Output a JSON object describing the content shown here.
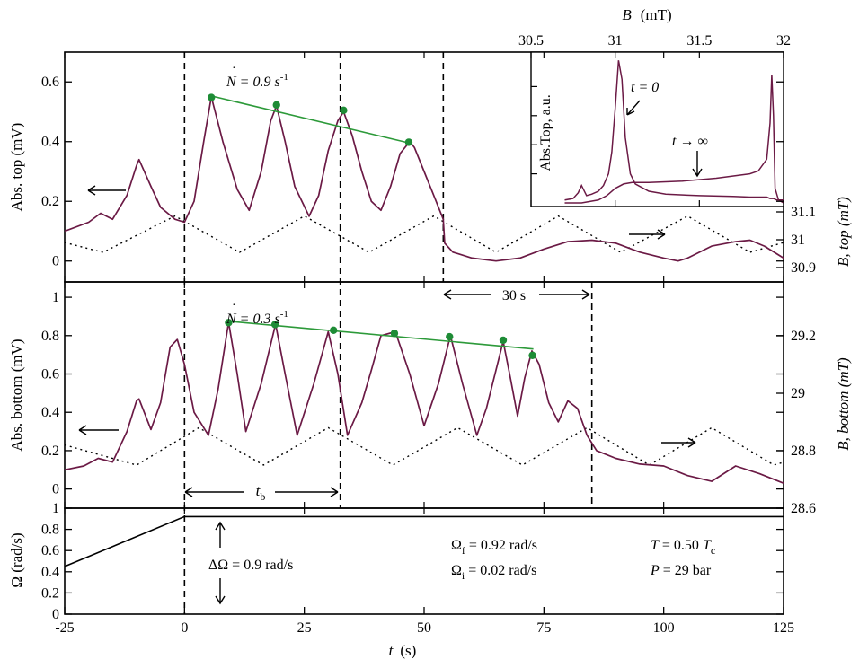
{
  "chart_data": {
    "type": "line",
    "x_axis": {
      "label_var": "t",
      "label_unit": "(s)",
      "range": [
        -25,
        125
      ],
      "ticks": [
        "-25",
        "0",
        "25",
        "50",
        "75",
        "100",
        "125"
      ]
    },
    "top_panel": {
      "ylabel": "Abs. top  (mV)",
      "ylim": [
        -0.07,
        0.7
      ],
      "yticks": [
        "0",
        "0.2",
        "0.4",
        "0.6"
      ],
      "right_label": "B, top  (mT)",
      "right_ticks": [
        "30.9",
        "31",
        "31.1"
      ],
      "rate_label": "N = 0.9 s",
      "rate_exp": "-1",
      "signal_x": [
        -25,
        -20,
        -17.5,
        -15,
        -12,
        -10,
        -9.5,
        -7,
        -5,
        -2,
        0,
        2,
        4,
        5.6,
        8,
        11,
        13.5,
        16,
        18,
        19.2,
        21,
        23,
        26,
        28,
        30,
        32,
        33.2,
        35,
        37,
        39,
        41,
        43,
        45,
        47,
        48,
        50,
        52,
        54,
        54.3,
        56,
        60,
        65,
        70,
        75,
        80,
        85,
        90,
        95,
        100,
        103,
        105,
        110,
        115,
        118,
        121,
        125
      ],
      "signal_y": [
        0.1,
        0.13,
        0.16,
        0.14,
        0.22,
        0.32,
        0.34,
        0.25,
        0.18,
        0.14,
        0.13,
        0.2,
        0.4,
        0.55,
        0.4,
        0.24,
        0.17,
        0.3,
        0.47,
        0.52,
        0.4,
        0.25,
        0.15,
        0.22,
        0.37,
        0.47,
        0.5,
        0.42,
        0.3,
        0.2,
        0.17,
        0.25,
        0.36,
        0.4,
        0.38,
        0.3,
        0.22,
        0.14,
        0.06,
        0.03,
        0.01,
        0.0,
        0.01,
        0.04,
        0.065,
        0.07,
        0.06,
        0.03,
        0.01,
        0.0,
        0.01,
        0.05,
        0.065,
        0.07,
        0.05,
        0.01
      ],
      "field_x": [
        -25,
        -17,
        -2,
        11.5,
        25,
        38.5,
        52,
        65,
        78,
        91,
        105,
        118,
        125
      ],
      "field_y": [
        30.99,
        30.955,
        31.085,
        30.955,
        31.085,
        30.955,
        31.085,
        30.955,
        31.085,
        30.955,
        31.085,
        30.955,
        30.99
      ],
      "fit_x": [
        5.6,
        46.8
      ],
      "fit_y": [
        0.553,
        0.396
      ],
      "peaks_x": [
        5.6,
        19.2,
        33.2,
        46.8
      ],
      "peaks_y": [
        0.548,
        0.523,
        0.505,
        0.398
      ]
    },
    "middle_panel": {
      "ylabel": "Abs. bottom  (mV)",
      "ylim": [
        -0.1,
        1.08
      ],
      "yticks": [
        "0",
        "0.2",
        "0.4",
        "0.6",
        "0.8",
        "1"
      ],
      "right_label": "B, bottom  (mT)",
      "right_ticks": [
        "28.6",
        "28.8",
        "29",
        "29.2"
      ],
      "rate_label": "N = 0.3 s",
      "rate_exp": "-1",
      "signal_x": [
        -25,
        -21,
        -18,
        -15,
        -12,
        -10,
        -9.5,
        -7,
        -5,
        -3,
        -1.5,
        0,
        2,
        5,
        7,
        9.2,
        11,
        12.8,
        16,
        19,
        21,
        23.5,
        27,
        30,
        32,
        34,
        37,
        39,
        41,
        44,
        47,
        50,
        53,
        55.5,
        58,
        61,
        63,
        65,
        66.5,
        68,
        69.5,
        71,
        72.5,
        74,
        76,
        78,
        80,
        82,
        84,
        86,
        90,
        95,
        100,
        105,
        110,
        115,
        120,
        125
      ],
      "signal_y": [
        0.1,
        0.12,
        0.16,
        0.14,
        0.3,
        0.46,
        0.47,
        0.31,
        0.45,
        0.74,
        0.78,
        0.65,
        0.4,
        0.28,
        0.52,
        0.87,
        0.6,
        0.3,
        0.55,
        0.86,
        0.6,
        0.28,
        0.55,
        0.82,
        0.6,
        0.28,
        0.45,
        0.62,
        0.8,
        0.82,
        0.6,
        0.33,
        0.55,
        0.8,
        0.55,
        0.28,
        0.42,
        0.62,
        0.77,
        0.58,
        0.38,
        0.58,
        0.72,
        0.65,
        0.45,
        0.35,
        0.46,
        0.42,
        0.28,
        0.2,
        0.16,
        0.13,
        0.12,
        0.07,
        0.04,
        0.12,
        0.08,
        0.03
      ],
      "field_x": [
        -25,
        -10,
        3,
        16.5,
        30,
        43.5,
        57,
        70.5,
        84,
        97,
        110,
        123,
        125
      ],
      "field_y": [
        28.82,
        28.75,
        28.88,
        28.75,
        28.88,
        28.75,
        28.88,
        28.75,
        28.88,
        28.75,
        28.88,
        28.75,
        28.76
      ],
      "fit_x": [
        9.2,
        72.8
      ],
      "fit_y": [
        0.875,
        0.73
      ],
      "peaks_x": [
        9.2,
        18.9,
        31.1,
        43.8,
        55.3,
        66.5,
        72.6
      ],
      "peaks_y": [
        0.868,
        0.858,
        0.828,
        0.812,
        0.794,
        0.776,
        0.697
      ]
    },
    "bottom_panel": {
      "ylabel": "Ω  (rad/s)",
      "ylim": [
        0,
        1
      ],
      "yticks": [
        "0",
        "0.2",
        "0.4",
        "0.6",
        "0.8",
        "1"
      ],
      "omega_x": [
        -25,
        0,
        125
      ],
      "omega_y": [
        0.45,
        0.92,
        0.92
      ],
      "annotations": {
        "delta_omega": "ΔΩ = 0.9 rad/s",
        "omega_f": "Ω",
        "omega_f_sub": "f",
        "omega_f_val": " = 0.92 rad/s",
        "omega_i": "Ω",
        "omega_i_sub": "i",
        "omega_i_val": " = 0.02 rad/s",
        "temperature": "T",
        "temperature_val": " = 0.50 ",
        "temperature_unit": "T",
        "temperature_unit_sub": "c",
        "pressure": "P",
        "pressure_val": " = 29 bar"
      }
    },
    "markers": {
      "tb_label": "t",
      "tb_sub": "b",
      "interval_label": "30 s"
    },
    "inset": {
      "xlabel_var": "B",
      "xlabel_unit": "(mT)",
      "xrange": [
        30.5,
        32
      ],
      "xticks": [
        "30.5",
        "31",
        "31.5",
        "32"
      ],
      "ylabel": "Abs.Top, a.u.",
      "label_t0": "t = 0",
      "label_tinf": "t → ∞",
      "t0_x": [
        30.7,
        30.75,
        30.78,
        30.8,
        30.83,
        30.86,
        30.9,
        30.93,
        30.96,
        30.98,
        31.0,
        31.02,
        31.04,
        31.06,
        31.09,
        31.12,
        31.2,
        31.3,
        31.5,
        31.7,
        31.8,
        31.9,
        31.92,
        31.94,
        31.96,
        32.0
      ],
      "t0_y": [
        0.02,
        0.03,
        0.07,
        0.12,
        0.05,
        0.06,
        0.08,
        0.12,
        0.2,
        0.35,
        0.65,
        0.98,
        0.85,
        0.45,
        0.2,
        0.13,
        0.08,
        0.06,
        0.05,
        0.045,
        0.04,
        0.04,
        0.03,
        0.03,
        0.02,
        0.02
      ],
      "tinf_x": [
        30.7,
        30.8,
        30.9,
        30.95,
        31.0,
        31.05,
        31.1,
        31.2,
        31.4,
        31.6,
        31.8,
        31.85,
        31.9,
        31.92,
        31.93,
        31.94,
        31.95,
        31.97,
        32.0
      ],
      "tinf_y": [
        0.0,
        0.0,
        0.02,
        0.05,
        0.1,
        0.13,
        0.14,
        0.14,
        0.15,
        0.17,
        0.2,
        0.22,
        0.3,
        0.55,
        0.88,
        0.6,
        0.1,
        0.02,
        0.0
      ]
    },
    "colors": {
      "signal": "#6b1a45",
      "fit": "#2d9a3a",
      "points": "#1e8c36"
    }
  }
}
